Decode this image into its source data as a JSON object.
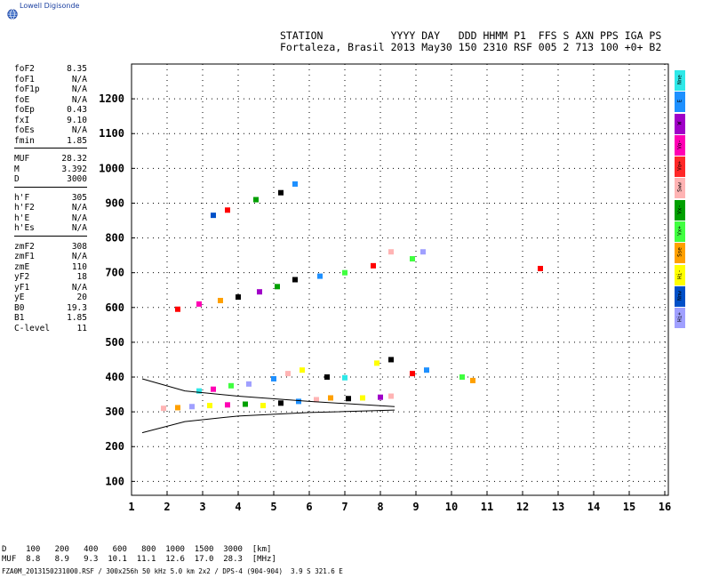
{
  "logo": {
    "text": "Lowell Digisonde",
    "icon": "globe-icon"
  },
  "header": {
    "line1": "STATION           YYYY DAY   DDD HHMM P1  FFS S AXN PPS IGA PS",
    "line2": "Fortaleza, Brasil 2013 May30 150 2310 RSF 005 2 713 100 +0+ B2"
  },
  "params": [
    {
      "name": "foF2",
      "value": "8.35"
    },
    {
      "name": "foF1",
      "value": "N/A"
    },
    {
      "name": "foF1p",
      "value": "N/A"
    },
    {
      "name": "foE",
      "value": "N/A"
    },
    {
      "name": "foEp",
      "value": "0.43"
    },
    {
      "name": "fxI",
      "value": "9.10"
    },
    {
      "name": "foEs",
      "value": "N/A"
    },
    {
      "name": "fmin",
      "value": "1.85"
    },
    {
      "name": "MUF",
      "value": "28.32"
    },
    {
      "name": "M",
      "value": "3.392"
    },
    {
      "name": "D",
      "value": "3000"
    },
    {
      "name": "h'F",
      "value": "305"
    },
    {
      "name": "h'F2",
      "value": "N/A"
    },
    {
      "name": "h'E",
      "value": "N/A"
    },
    {
      "name": "h'Es",
      "value": "N/A"
    },
    {
      "name": "zmF2",
      "value": "308"
    },
    {
      "name": "zmF1",
      "value": "N/A"
    },
    {
      "name": "zmE",
      "value": "110"
    },
    {
      "name": "yF2",
      "value": "18"
    },
    {
      "name": "yF1",
      "value": "N/A"
    },
    {
      "name": "yE",
      "value": "20"
    },
    {
      "name": "B0",
      "value": "19.3"
    },
    {
      "name": "B1",
      "value": "1.85"
    },
    {
      "name": "C-level",
      "value": "11"
    }
  ],
  "param_groups": [
    8,
    3,
    4,
    9
  ],
  "legend": [
    {
      "label": "Nne",
      "color": "#2ee8e8"
    },
    {
      "label": "E",
      "color": "#1e90ff"
    },
    {
      "label": "W",
      "color": "#a000c8"
    },
    {
      "label": "Vo-",
      "color": "#ff00b4"
    },
    {
      "label": "Vo+",
      "color": "#ff2828"
    },
    {
      "label": "Sww",
      "color": "#ffb4b4"
    },
    {
      "label": "Vx-",
      "color": "#00a000"
    },
    {
      "label": "Vx+",
      "color": "#40ff40"
    },
    {
      "label": "Sse",
      "color": "#ffa000"
    },
    {
      "label": "Hi-",
      "color": "#ffff00"
    },
    {
      "label": "Nnw",
      "color": "#0050c8"
    },
    {
      "label": "Hi+",
      "color": "#a0a0ff"
    }
  ],
  "bottom": {
    "line1": "D    100   200   400   600   800  1000  1500  3000  [km]",
    "line2": "MUF  8.8   8.9   9.3  10.1  11.1  12.6  17.0  28.3  [MHz]"
  },
  "footer": "FZA0M_2013150231000.RSF / 300x256h 50 kHz 5.0 km 2x2 / DPS-4 (904-904)  3.9 S 321.6 E",
  "chart_data": {
    "type": "scatter",
    "title": "",
    "xlabel": "",
    "ylabel": "",
    "xlim": [
      1,
      16.1
    ],
    "ylim": [
      60,
      1300
    ],
    "x_ticks": [
      1,
      2,
      3,
      4,
      5,
      6,
      7,
      8,
      9,
      10,
      11,
      12,
      13,
      14,
      15,
      16
    ],
    "y_ticks": [
      100,
      200,
      300,
      400,
      500,
      600,
      700,
      800,
      900,
      1000,
      1100,
      1200
    ],
    "grid": true,
    "series": [
      {
        "values": [
          [
            1.9,
            310
          ],
          [
            2.3,
            312
          ],
          [
            2.7,
            315
          ],
          [
            3.2,
            318
          ],
          [
            3.7,
            320
          ],
          [
            4.2,
            322
          ],
          [
            4.7,
            318
          ],
          [
            5.2,
            325
          ],
          [
            5.7,
            330
          ],
          [
            6.2,
            335
          ],
          [
            6.6,
            340
          ],
          [
            7.1,
            338
          ],
          [
            7.5,
            340
          ],
          [
            8.0,
            342
          ],
          [
            8.3,
            345
          ]
        ]
      },
      {
        "values": [
          [
            2.9,
            360
          ],
          [
            3.3,
            365
          ],
          [
            3.8,
            375
          ],
          [
            4.3,
            380
          ],
          [
            5.0,
            395
          ],
          [
            5.4,
            410
          ],
          [
            5.8,
            420
          ],
          [
            6.5,
            400
          ],
          [
            7.0,
            398
          ],
          [
            7.9,
            440
          ],
          [
            8.3,
            450
          ],
          [
            8.9,
            410
          ],
          [
            9.3,
            420
          ],
          [
            10.3,
            400
          ],
          [
            10.6,
            390
          ]
        ]
      },
      {
        "values": [
          [
            2.3,
            595
          ],
          [
            2.9,
            610
          ],
          [
            3.5,
            620
          ],
          [
            4.0,
            630
          ],
          [
            4.6,
            645
          ],
          [
            5.1,
            660
          ],
          [
            5.6,
            680
          ],
          [
            6.3,
            690
          ],
          [
            7.0,
            700
          ],
          [
            7.8,
            720
          ],
          [
            8.3,
            760
          ],
          [
            8.9,
            740
          ],
          [
            9.2,
            760
          ],
          [
            12.5,
            712
          ]
        ]
      },
      {
        "values": [
          [
            3.3,
            865
          ],
          [
            3.7,
            880
          ],
          [
            4.5,
            910
          ],
          [
            5.2,
            930
          ],
          [
            5.6,
            955
          ]
        ]
      }
    ],
    "curves": [
      {
        "values": [
          [
            1.3,
            395
          ],
          [
            2.5,
            360
          ],
          [
            4.0,
            345
          ],
          [
            6.0,
            330
          ],
          [
            8.4,
            315
          ]
        ]
      },
      {
        "values": [
          [
            1.3,
            240
          ],
          [
            2.5,
            272
          ],
          [
            4.0,
            288
          ],
          [
            6.0,
            298
          ],
          [
            8.4,
            305
          ]
        ]
      }
    ]
  }
}
